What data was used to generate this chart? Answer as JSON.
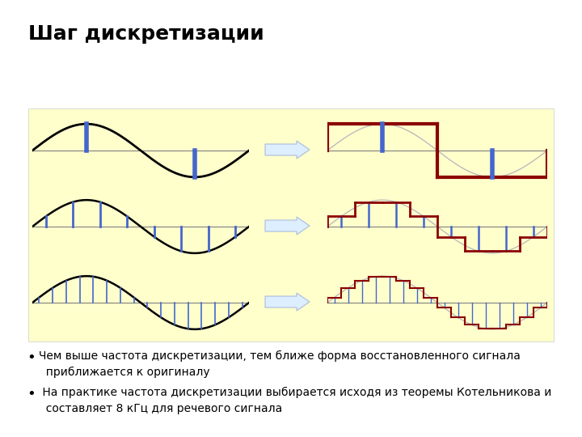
{
  "title": "Шаг дискретизации",
  "title_fontsize": 18,
  "title_fontweight": "bold",
  "background_color": "#ffffff",
  "panel_bg": "#ffffcc",
  "bullet1": "Чем выше частота дискретизации, тем ближе форма восстановленного сигнала\n  приближается к оригиналу",
  "bullet2": " На практике частота дискретизации выбирается исходя из теоремы Котельникова и\n  составляет 8 кГц для речевого сигнала",
  "text_fontsize": 10,
  "sine_color": "#000000",
  "blue_color": "#4466cc",
  "red_color": "#8B0000",
  "arrow_facecolor": "#ddeeff",
  "arrow_edgecolor": "#aabbdd",
  "row1_samples": 2,
  "row2_samples": 8,
  "row3_samples": 16
}
